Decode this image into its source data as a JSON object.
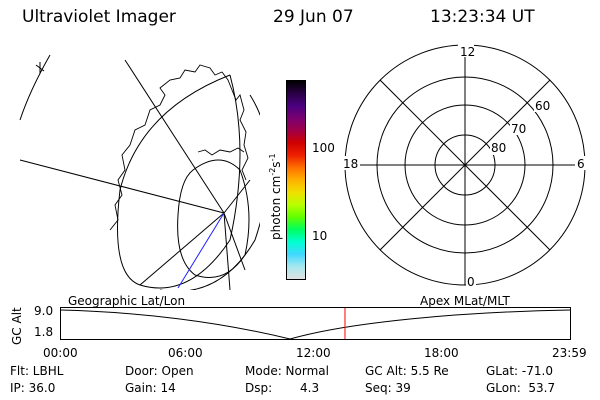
{
  "header": {
    "title": "Ultraviolet Imager",
    "date": "29 Jun 07",
    "time": "13:23:34 UT"
  },
  "colorbar": {
    "label": "photon cm",
    "label_sup1": "-2",
    "label_s": "s",
    "label_sup2": "-1",
    "tick_100": "100",
    "tick_10": "10",
    "colors": [
      "#000000",
      "#2a0044",
      "#4a0080",
      "#7a0070",
      "#a00048",
      "#d00000",
      "#ee2000",
      "#ff7000",
      "#ffb000",
      "#f0e000",
      "#b8ff00",
      "#60ff00",
      "#00ff60",
      "#00ffd0",
      "#40d8ff",
      "#a8e8f0",
      "#e0e0e0"
    ]
  },
  "polar": {
    "mlt_labels": {
      "top": "12",
      "left": "18",
      "right": "6",
      "bottom": "0"
    },
    "lat_labels": [
      "60",
      "70",
      "80"
    ]
  },
  "timeline": {
    "left_label": "Geographic Lat/Lon",
    "right_label": "Apex MLat/MLT",
    "axis_label": "GC Alt",
    "y_top": "9.0",
    "y_bottom": "1.8",
    "x_ticks": [
      "00:00",
      "06:00",
      "12:00",
      "18:00",
      "23:59"
    ],
    "marker_time_hours": 13.39
  },
  "info": {
    "flt": "Flt: LBHL",
    "ip": "IP: 36.0",
    "door": "Door: Open",
    "gain": "Gain: 14",
    "mode": "Mode: Normal",
    "dsp_label": "Dsp:",
    "dsp_value": "4.3",
    "gcalt": "GC Alt: 5.5 Re",
    "seq": "Seq: 39",
    "glat": "GLat: -71.0",
    "glon": "GLon:  53.7"
  }
}
